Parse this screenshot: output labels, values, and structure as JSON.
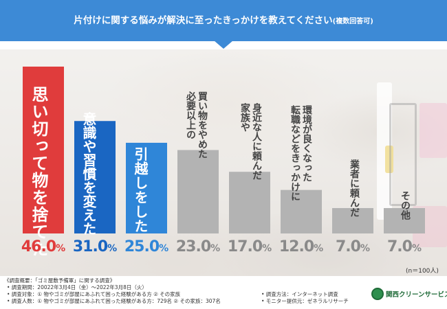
{
  "header": {
    "title": "片付けに関する悩みが解決に至ったきっかけを教えてください",
    "subtitle": "(複数回答可)"
  },
  "colors": {
    "banner": "#3d8ad6",
    "highlight_red": "#e03c3c",
    "highlight_blue": "#1a66c2",
    "highlight_lightblue": "#2f86d8",
    "gray_bar": "#b3b3b3",
    "pct_red": "#e03c3c",
    "pct_blue": "#1a66c2",
    "pct_lightblue": "#2f86d8",
    "pct_gray": "#8a8a8a"
  },
  "chart_data": {
    "type": "bar",
    "title": "片付けに関する悩みが解決に至ったきっかけを教えてください(複数回答可)",
    "categories": [
      "思い切って物を捨てた",
      "意識や習慣を変えた",
      "引越しをした",
      "必要以上の買い物をやめた",
      "家族や身近な人に頼んだ",
      "転職などをきっかけに環境が良くなった",
      "業者に頼んだ",
      "その他"
    ],
    "values": [
      46.0,
      31.0,
      25.0,
      23.0,
      17.0,
      12.0,
      7.0,
      7.0
    ],
    "value_labels": [
      "46.0",
      "31.0",
      "25.0",
      "23.0",
      "17.0",
      "12.0",
      "7.0",
      "7.0"
    ],
    "unit": "%",
    "ylim": [
      0,
      46.0
    ],
    "grid": false,
    "legend": "none",
    "sample_note": "(n＝100人)"
  },
  "bar_text": {
    "b0": "思い切って物を捨てた",
    "b1": "意識や習慣を変えた",
    "b2": "引越しをした",
    "b3_l1": "必要以上の",
    "b3_l2": "買い物をやめた",
    "b4_l1": "家族や",
    "b4_l2": "身近な人に頼んだ",
    "b5_l1": "転職などをきっかけに",
    "b5_l2": "環境が良くなった",
    "b6": "業者に頼んだ",
    "b7": "その他"
  },
  "footer": {
    "overview": "《調査概要：「ゴミ屋敷予備軍」に関する調査》",
    "period": "• 調査期間：20022年3月4日（金）〜2022年3月8日（火）",
    "target": "• 調査対象：① 物やゴミが部屋にあふれて困った経験がある方 ② その家族",
    "count": "• 調査人数：① 物やゴミが部屋にあふれて困った経験がある方：729名 ② その家族：307名",
    "method": "• 調査方法：インターネット調査",
    "provider": "• モニター提供元：ゼネラルリサーチ",
    "logo": "関西クリーンサービス"
  }
}
